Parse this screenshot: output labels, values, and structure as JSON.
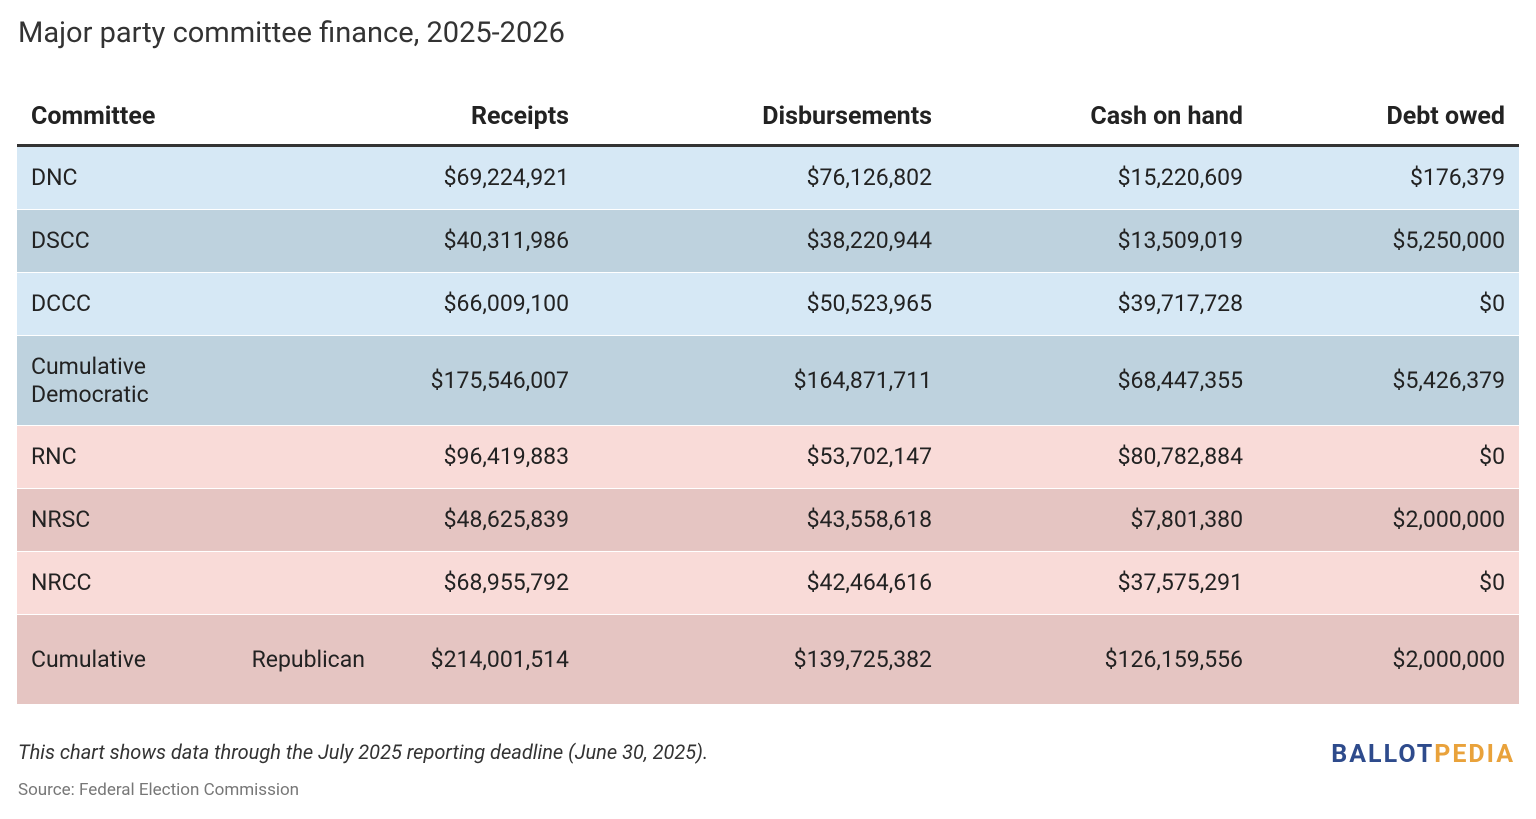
{
  "header": {
    "title": "Major party committee finance, 2025-2026"
  },
  "table": {
    "columns": [
      "Committee",
      "Receipts",
      "Disbursements",
      "Cash on hand",
      "Debt owed"
    ],
    "rows": [
      [
        "DNC",
        "$69,224,921",
        "$76,126,802",
        "$15,220,609",
        "$176,379"
      ],
      [
        "DSCC",
        "$40,311,986",
        "$38,220,944",
        "$13,509,019",
        "$5,250,000"
      ],
      [
        "DCCC",
        "$66,009,100",
        "$50,523,965",
        "$39,717,728",
        "$0"
      ],
      [
        "Cumulative Democratic",
        "$175,546,007",
        "$164,871,711",
        "$68,447,355",
        "$5,426,379"
      ],
      [
        "RNC",
        "$96,419,883",
        "$53,702,147",
        "$80,782,884",
        "$0"
      ],
      [
        "NRSC",
        "$48,625,839",
        "$43,558,618",
        "$7,801,380",
        "$2,000,000"
      ],
      [
        "NRCC",
        "$68,955,792",
        "$42,464,616",
        "$37,575,291",
        "$0"
      ],
      [
        "Cumulative Republican",
        "$214,001,514",
        "$139,725,382",
        "$126,159,556",
        "$2,000,000"
      ]
    ]
  },
  "footer": {
    "note": "This chart shows data through the July 2025 reporting deadline (June 30, 2025).",
    "source": "Source: Federal Election Commission",
    "logo": {
      "first": "BALLOT",
      "second": "PEDIA"
    }
  }
}
